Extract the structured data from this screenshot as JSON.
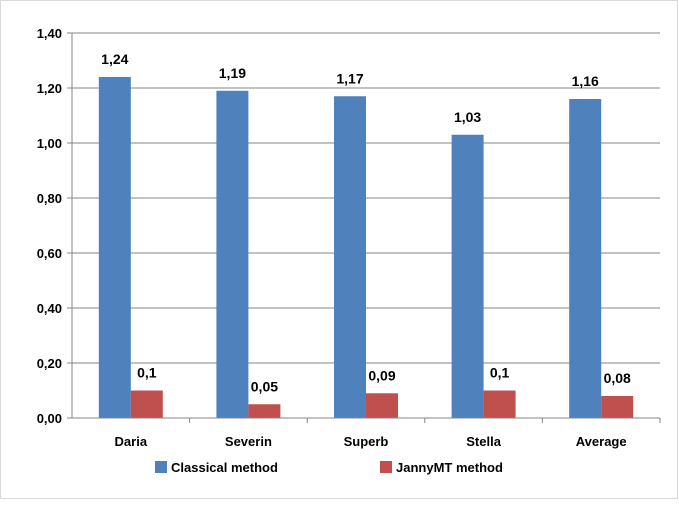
{
  "chart_data": {
    "type": "bar",
    "categories": [
      "Daria",
      "Severin",
      "Superb",
      "Stella",
      "Average"
    ],
    "series": [
      {
        "name": "Classical method",
        "color": "#4F81BD",
        "values": [
          1.24,
          1.19,
          1.17,
          1.03,
          1.16
        ],
        "labels": [
          "1,24",
          "1,19",
          "1,17",
          "1,03",
          "1,16"
        ]
      },
      {
        "name": "JannyMT method",
        "color": "#C0504D",
        "values": [
          0.1,
          0.05,
          0.09,
          0.1,
          0.08
        ],
        "labels": [
          "0,1",
          "0,05",
          "0,09",
          "0,1",
          "0,08"
        ]
      }
    ],
    "ylim": [
      0,
      1.4
    ],
    "yticks": [
      "0,00",
      "0,20",
      "0,40",
      "0,60",
      "0,80",
      "1,00",
      "1,20",
      "1,40"
    ],
    "grid": true,
    "legend": "bottom"
  }
}
